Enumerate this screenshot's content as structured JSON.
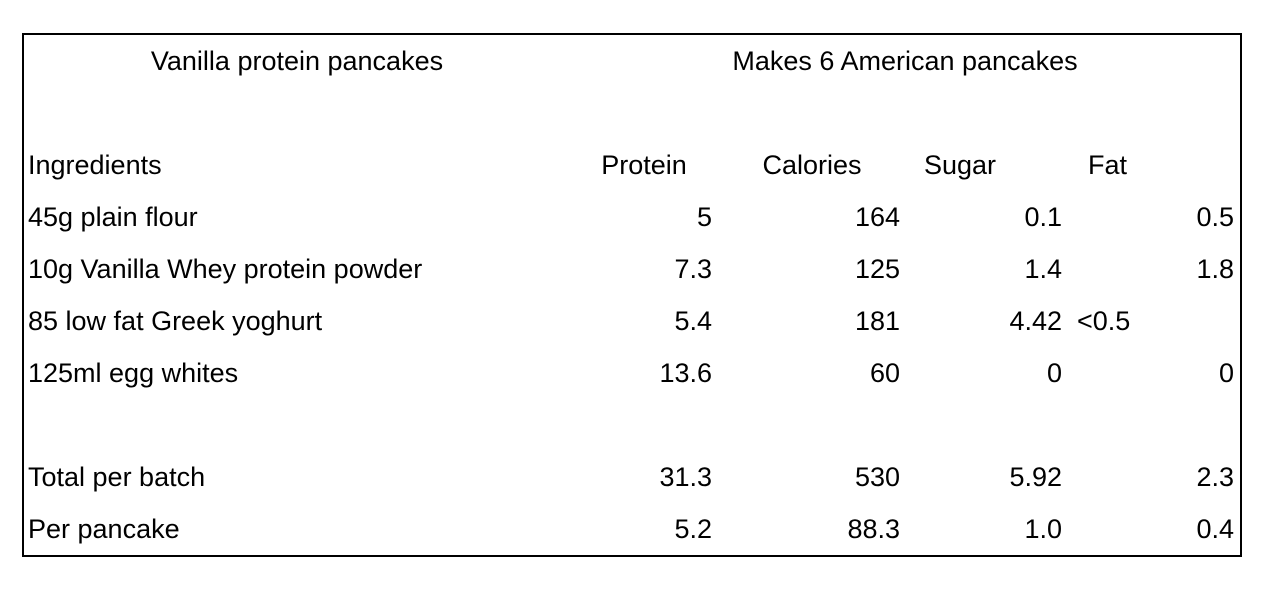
{
  "colors": {
    "background": "#ffffff",
    "border": "#000000",
    "text": "#000000"
  },
  "table": {
    "title_left": "Vanilla protein pancakes",
    "title_right": "Makes 6 American pancakes",
    "columns": [
      "Ingredients",
      "Protein",
      "Calories",
      "Sugar",
      "Fat"
    ],
    "rows": [
      {
        "ingredient": "45g plain flour",
        "protein": "5",
        "calories": "164",
        "sugar": "0.1",
        "fat": "0.5"
      },
      {
        "ingredient": "10g Vanilla Whey protein powder",
        "protein": "7.3",
        "calories": "125",
        "sugar": "1.4",
        "fat": "1.8"
      },
      {
        "ingredient": "85 low fat Greek yoghurt",
        "protein": "5.4",
        "calories": "181",
        "sugar": "4.42",
        "fat": "<0.5"
      },
      {
        "ingredient": "125ml egg whites",
        "protein": "13.6",
        "calories": "60",
        "sugar": "0",
        "fat": "0"
      }
    ],
    "summary_rows": [
      {
        "label": "Total per batch",
        "protein": "31.3",
        "calories": "530",
        "sugar": "5.92",
        "fat": "2.3"
      },
      {
        "label": "Per pancake",
        "protein": "5.2",
        "calories": "88.3",
        "sugar": "1.0",
        "fat": "0.4"
      }
    ]
  }
}
